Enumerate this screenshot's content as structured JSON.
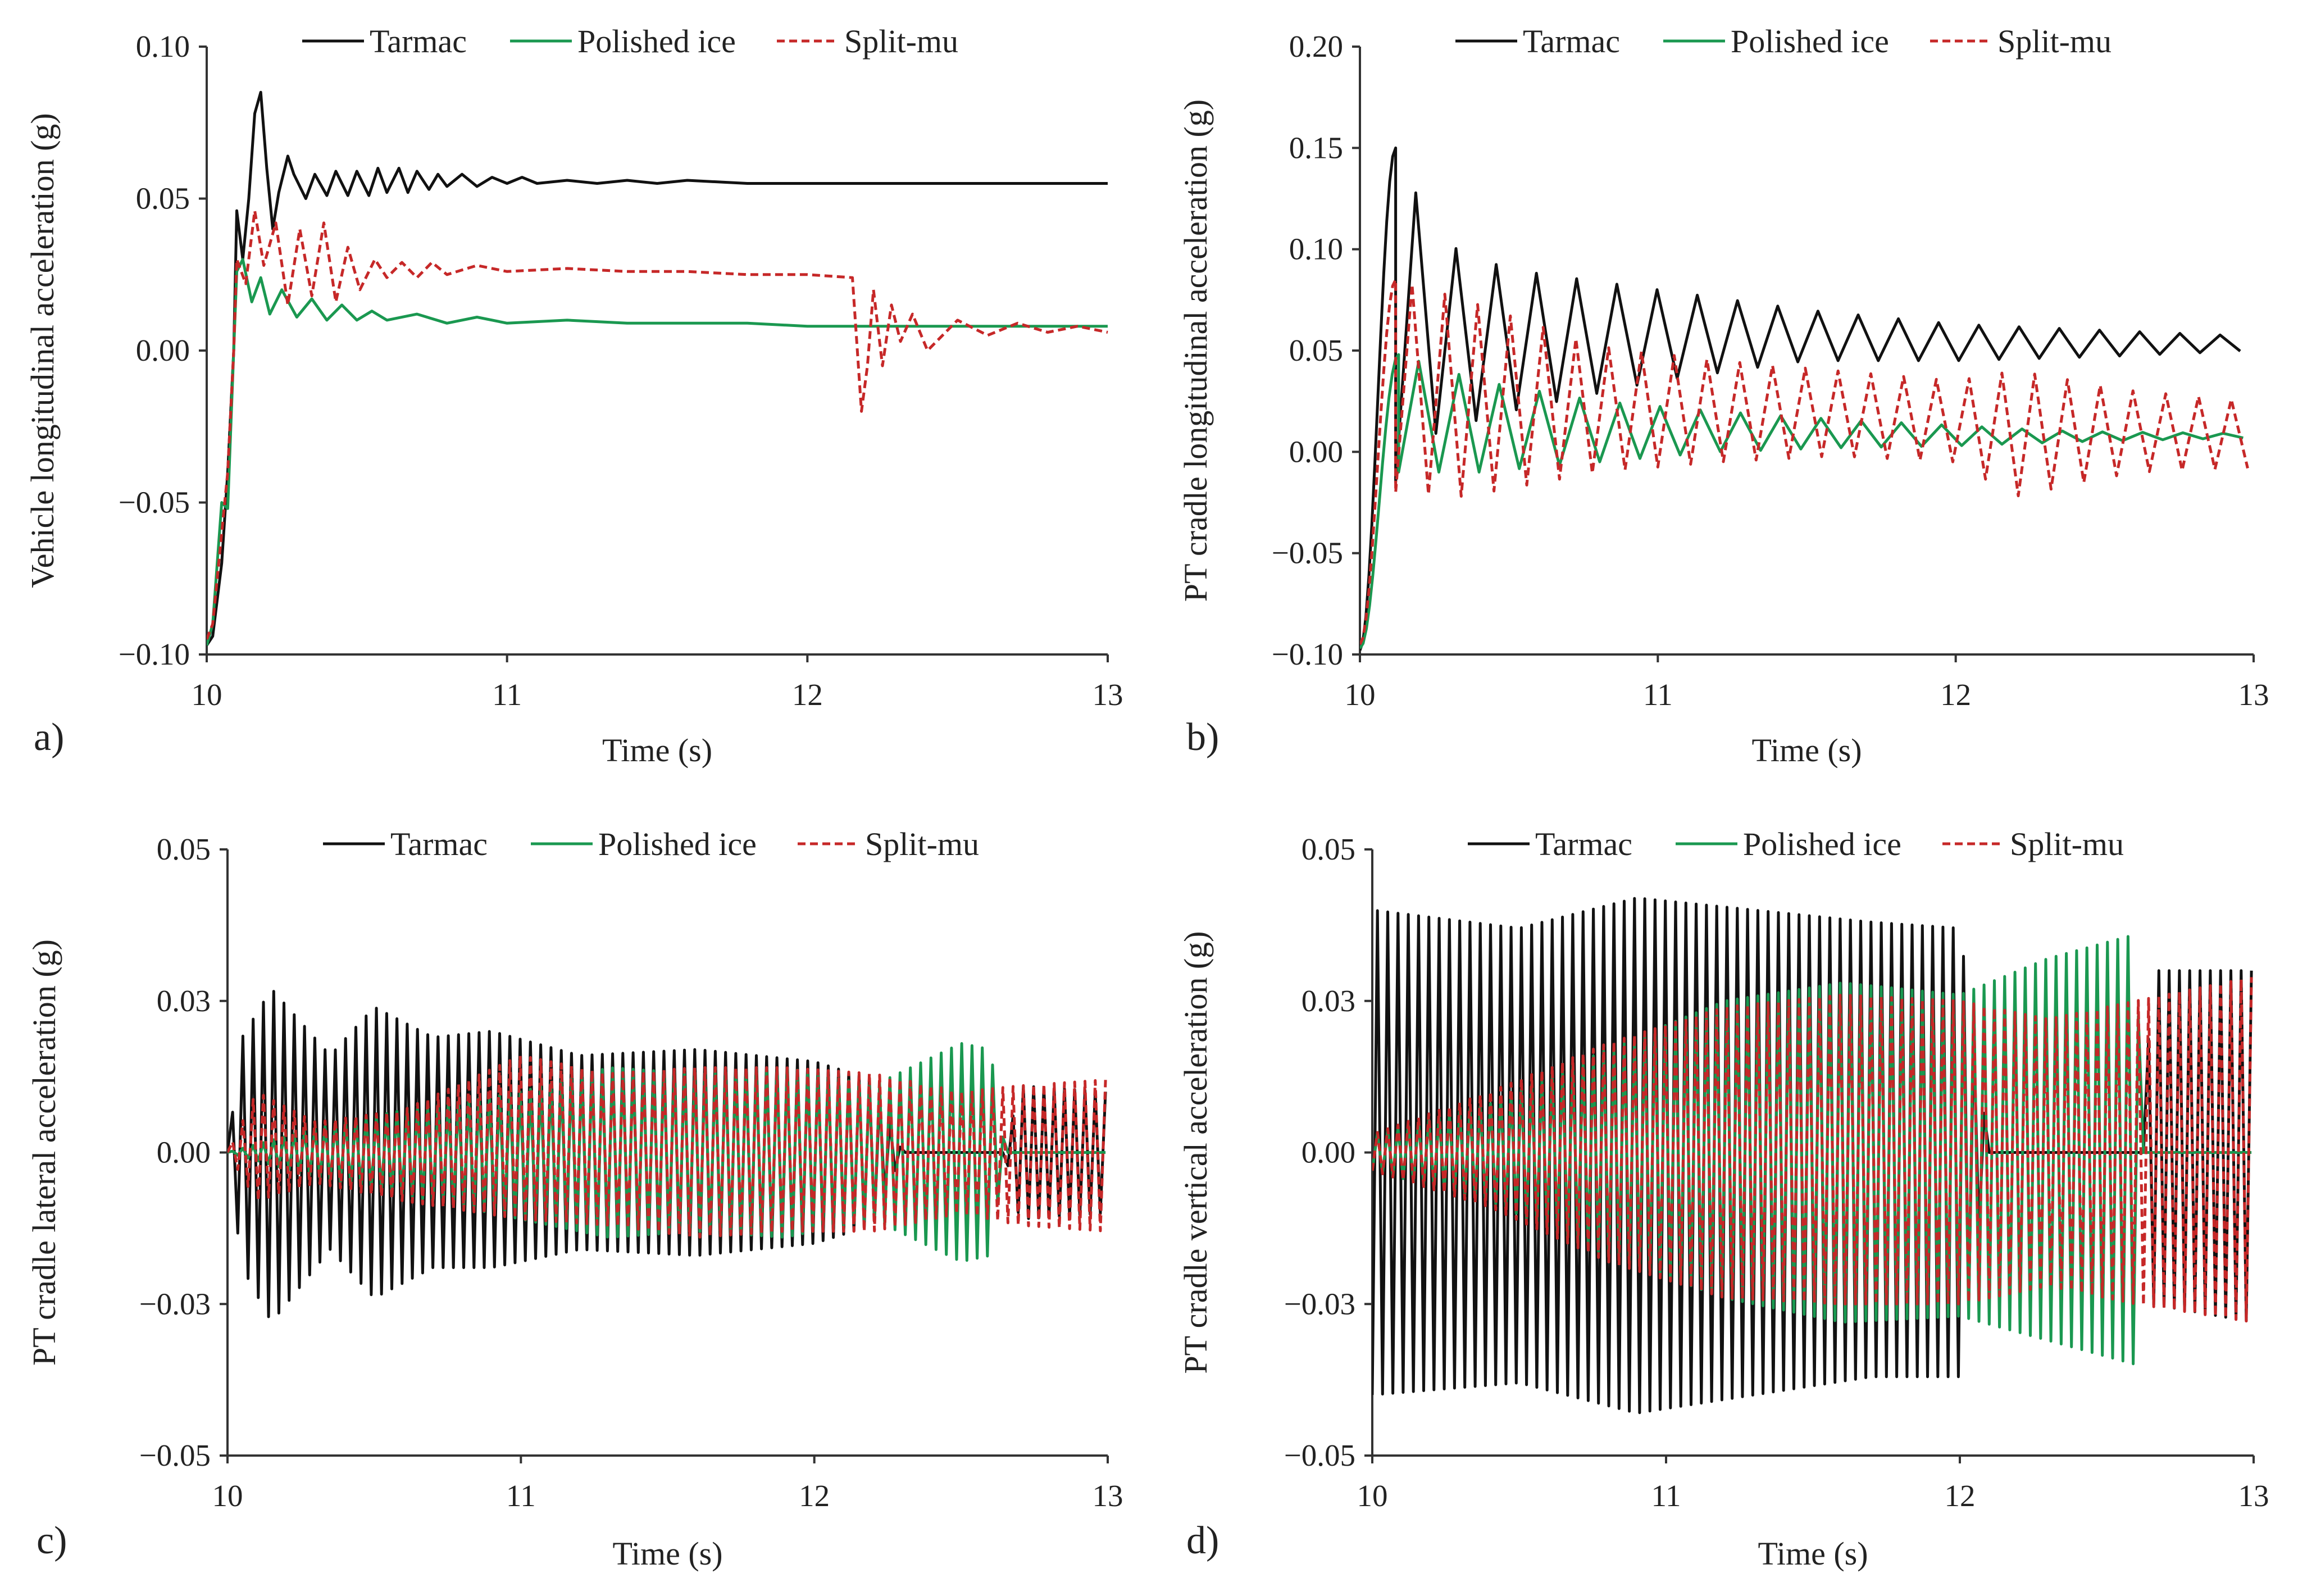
{
  "figure": {
    "legend": [
      {
        "name": "Tarmac",
        "color": "#111111",
        "dash": "solid"
      },
      {
        "name": "Polished ice",
        "color": "#1a9850",
        "dash": "solid"
      },
      {
        "name": "Split-mu",
        "color": "#c62828",
        "dash": "dashed"
      }
    ]
  },
  "chart_data": [
    {
      "panel": "a)",
      "type": "line",
      "title": "",
      "xlabel": "Time (s)",
      "ylabel": "Vehicle longitudinal acceleration (g)",
      "xlim": [
        10,
        13
      ],
      "ylim": [
        -0.1,
        0.1
      ],
      "xticks": [
        10,
        11,
        12,
        13
      ],
      "xtick_labels": [
        "10",
        "11",
        "12",
        "13"
      ],
      "yticks": [
        -0.1,
        -0.05,
        0,
        0.05,
        0.1
      ],
      "ytick_labels": [
        "−0.10",
        "−0.05",
        "0.00",
        "0.05",
        "0.10"
      ],
      "legend": [
        "Tarmac",
        "Polished ice",
        "Split-mu"
      ],
      "series": [
        {
          "name": "Tarmac",
          "x": [
            10.0,
            10.02,
            10.05,
            10.07,
            10.09,
            10.1,
            10.12,
            10.14,
            10.16,
            10.18,
            10.2,
            10.22,
            10.24,
            10.27,
            10.29,
            10.33,
            10.36,
            10.4,
            10.43,
            10.47,
            10.5,
            10.54,
            10.57,
            10.6,
            10.64,
            10.67,
            10.7,
            10.74,
            10.77,
            10.8,
            10.85,
            10.9,
            10.95,
            11.0,
            11.05,
            11.1,
            11.2,
            11.3,
            11.4,
            11.5,
            11.6,
            11.8,
            12.0,
            12.2,
            12.4,
            12.6,
            12.8,
            13.0
          ],
          "values": [
            -0.097,
            -0.094,
            -0.07,
            -0.04,
            0.0,
            0.046,
            0.03,
            0.05,
            0.078,
            0.085,
            0.06,
            0.04,
            0.052,
            0.064,
            0.058,
            0.05,
            0.058,
            0.051,
            0.059,
            0.051,
            0.059,
            0.051,
            0.06,
            0.052,
            0.06,
            0.052,
            0.059,
            0.053,
            0.058,
            0.054,
            0.058,
            0.054,
            0.057,
            0.055,
            0.057,
            0.055,
            0.056,
            0.055,
            0.056,
            0.055,
            0.056,
            0.055,
            0.055,
            0.055,
            0.055,
            0.055,
            0.055,
            0.055
          ]
        },
        {
          "name": "Polished ice",
          "x": [
            10.0,
            10.02,
            10.05,
            10.07,
            10.09,
            10.1,
            10.12,
            10.15,
            10.18,
            10.21,
            10.25,
            10.3,
            10.35,
            10.4,
            10.45,
            10.5,
            10.55,
            10.6,
            10.7,
            10.8,
            10.9,
            11.0,
            11.2,
            11.4,
            11.6,
            11.8,
            12.0,
            12.2,
            12.4,
            12.6,
            12.8,
            13.0
          ],
          "values": [
            -0.097,
            -0.09,
            -0.05,
            -0.052,
            0.0,
            0.026,
            0.03,
            0.016,
            0.024,
            0.012,
            0.02,
            0.011,
            0.017,
            0.01,
            0.015,
            0.01,
            0.013,
            0.01,
            0.012,
            0.009,
            0.011,
            0.009,
            0.01,
            0.009,
            0.009,
            0.009,
            0.008,
            0.008,
            0.008,
            0.008,
            0.008,
            0.008
          ]
        },
        {
          "name": "Split-mu",
          "x": [
            10.0,
            10.02,
            10.05,
            10.07,
            10.09,
            10.1,
            10.13,
            10.16,
            10.19,
            10.23,
            10.27,
            10.31,
            10.35,
            10.39,
            10.43,
            10.47,
            10.51,
            10.56,
            10.6,
            10.65,
            10.7,
            10.75,
            10.8,
            10.9,
            11.0,
            11.2,
            11.4,
            11.6,
            11.8,
            12.0,
            12.15,
            12.18,
            12.2,
            12.22,
            12.25,
            12.28,
            12.31,
            12.35,
            12.4,
            12.5,
            12.6,
            12.7,
            12.8,
            12.9,
            13.0
          ],
          "values": [
            -0.095,
            -0.09,
            -0.06,
            -0.04,
            0.0,
            0.03,
            0.022,
            0.046,
            0.028,
            0.042,
            0.015,
            0.04,
            0.018,
            0.042,
            0.016,
            0.034,
            0.02,
            0.03,
            0.024,
            0.029,
            0.024,
            0.029,
            0.025,
            0.028,
            0.026,
            0.027,
            0.026,
            0.026,
            0.025,
            0.025,
            0.024,
            -0.02,
            -0.005,
            0.02,
            -0.005,
            0.015,
            0.003,
            0.012,
            0.0,
            0.01,
            0.005,
            0.009,
            0.006,
            0.008,
            0.006
          ]
        }
      ]
    },
    {
      "panel": "b)",
      "type": "line",
      "title": "",
      "xlabel": "Time (s)",
      "ylabel": "PT cradle longitudinal acceleration (g)",
      "xlim": [
        10,
        13
      ],
      "ylim": [
        -0.1,
        0.2
      ],
      "xticks": [
        10,
        11,
        12,
        13
      ],
      "xtick_labels": [
        "10",
        "11",
        "12",
        "13"
      ],
      "yticks": [
        -0.1,
        -0.05,
        0,
        0.05,
        0.1,
        0.15,
        0.2
      ],
      "ytick_labels": [
        "−0.10",
        "−0.05",
        "0.00",
        "0.05",
        "0.10",
        "0.15",
        "0.20"
      ],
      "legend": [
        "Tarmac",
        "Polished ice",
        "Split-mu"
      ],
      "series": [
        {
          "name": "Tarmac",
          "oscillating": true,
          "start": [
            10.0,
            -0.098
          ],
          "rise_end": 10.1,
          "period": 0.135,
          "envelope": [
            [
              10.12,
              0.15,
              -0.015
            ],
            [
              10.26,
              0.104,
              0.01
            ],
            [
              10.5,
              0.09,
              0.02
            ],
            [
              11.0,
              0.08,
              0.035
            ],
            [
              11.5,
              0.07,
              0.045
            ],
            [
              12.0,
              0.063,
              0.045
            ],
            [
              12.5,
              0.06,
              0.047
            ],
            [
              13.0,
              0.057,
              0.05
            ]
          ]
        },
        {
          "name": "Polished ice",
          "oscillating": true,
          "start": [
            10.0,
            -0.097
          ],
          "rise_end": 10.1,
          "period": 0.135,
          "envelope": [
            [
              10.13,
              0.048,
              -0.01
            ],
            [
              10.4,
              0.035,
              -0.01
            ],
            [
              10.8,
              0.025,
              -0.005
            ],
            [
              11.2,
              0.02,
              0.0
            ],
            [
              11.6,
              0.016,
              0.002
            ],
            [
              12.0,
              0.013,
              0.003
            ],
            [
              12.4,
              0.01,
              0.005
            ],
            [
              13.0,
              0.009,
              0.007
            ]
          ]
        },
        {
          "name": "Split-mu",
          "oscillating": true,
          "start": [
            10.0,
            -0.095
          ],
          "rise_end": 10.09,
          "period": 0.11,
          "envelope": [
            [
              10.12,
              0.085,
              -0.02
            ],
            [
              10.35,
              0.075,
              -0.022
            ],
            [
              10.8,
              0.052,
              -0.01
            ],
            [
              11.2,
              0.045,
              -0.005
            ],
            [
              11.6,
              0.04,
              -0.002
            ],
            [
              12.0,
              0.035,
              -0.005
            ],
            [
              12.2,
              0.04,
              -0.022
            ],
            [
              12.6,
              0.03,
              -0.01
            ],
            [
              13.0,
              0.025,
              -0.008
            ]
          ]
        }
      ]
    },
    {
      "panel": "c)",
      "type": "line",
      "title": "",
      "xlabel": "Time (s)",
      "ylabel": "PT cradle lateral acceleration (g)",
      "xlim": [
        10,
        13
      ],
      "ylim": [
        -0.05,
        0.05
      ],
      "xticks": [
        10,
        11,
        12,
        13
      ],
      "xtick_labels": [
        "10",
        "11",
        "12",
        "13"
      ],
      "yticks": [
        -0.05,
        -0.025,
        0,
        0.025,
        0.05
      ],
      "ytick_labels": [
        "−0.05",
        "−0.03",
        "0.00",
        "0.03",
        "0.05"
      ],
      "legend": [
        "Tarmac",
        "Polished ice",
        "Split-mu"
      ],
      "series": [
        {
          "name": "Tarmac",
          "oscillating": true,
          "period": 0.035,
          "envelope": [
            [
              10.0,
              0.0,
              0.0
            ],
            [
              10.05,
              0.019,
              -0.019
            ],
            [
              10.15,
              0.027,
              -0.028
            ],
            [
              10.35,
              0.016,
              -0.016
            ],
            [
              10.5,
              0.024,
              -0.024
            ],
            [
              10.7,
              0.019,
              -0.019
            ],
            [
              10.9,
              0.02,
              -0.019
            ],
            [
              11.2,
              0.016,
              -0.016
            ],
            [
              11.6,
              0.017,
              -0.017
            ],
            [
              12.0,
              0.015,
              -0.015
            ],
            [
              12.2,
              0.012,
              -0.012
            ],
            [
              12.3,
              0.0,
              0.0
            ],
            [
              12.65,
              0.0,
              0.0
            ],
            [
              12.7,
              0.011,
              -0.011
            ],
            [
              13.0,
              0.01,
              -0.01
            ]
          ]
        },
        {
          "name": "Polished ice",
          "oscillating": true,
          "period": 0.035,
          "envelope": [
            [
              10.0,
              0.0,
              0.0
            ],
            [
              10.3,
              0.004,
              -0.004
            ],
            [
              10.6,
              0.007,
              -0.007
            ],
            [
              11.0,
              0.01,
              -0.011
            ],
            [
              11.3,
              0.014,
              -0.014
            ],
            [
              11.6,
              0.013,
              -0.013
            ],
            [
              11.9,
              0.014,
              -0.014
            ],
            [
              12.2,
              0.011,
              -0.011
            ],
            [
              12.5,
              0.018,
              -0.018
            ],
            [
              12.6,
              0.017,
              -0.017
            ],
            [
              12.65,
              0.0,
              0.0
            ],
            [
              13.0,
              0.0,
              0.0
            ]
          ]
        },
        {
          "name": "Split-mu",
          "oscillating": true,
          "period": 0.035,
          "envelope": [
            [
              10.0,
              0.0,
              0.0
            ],
            [
              10.1,
              0.01,
              -0.008
            ],
            [
              10.3,
              0.005,
              -0.005
            ],
            [
              10.6,
              0.007,
              -0.008
            ],
            [
              11.0,
              0.016,
              -0.011
            ],
            [
              11.3,
              0.013,
              -0.012
            ],
            [
              11.6,
              0.014,
              -0.014
            ],
            [
              11.9,
              0.014,
              -0.013
            ],
            [
              12.2,
              0.013,
              -0.013
            ],
            [
              12.5,
              0.01,
              -0.01
            ],
            [
              12.7,
              0.011,
              -0.012
            ],
            [
              13.0,
              0.012,
              -0.013
            ]
          ]
        }
      ]
    },
    {
      "panel": "d)",
      "type": "line",
      "title": "",
      "xlabel": "Time (s)",
      "ylabel": "PT cradle vertical acceleration (g)",
      "xlim": [
        10,
        13
      ],
      "ylim": [
        -0.05,
        0.05
      ],
      "xticks": [
        10,
        11,
        12,
        13
      ],
      "xtick_labels": [
        "10",
        "11",
        "12",
        "13"
      ],
      "yticks": [
        -0.05,
        -0.025,
        0,
        0.025,
        0.05
      ],
      "ytick_labels": [
        "−0.05",
        "−0.03",
        "0.00",
        "0.03",
        "0.05"
      ],
      "legend": [
        "Tarmac",
        "Polished ice",
        "Split-mu"
      ],
      "series": [
        {
          "name": "Tarmac",
          "oscillating": true,
          "period": 0.035,
          "envelope": [
            [
              10.0,
              0.04,
              -0.04
            ],
            [
              10.5,
              0.037,
              -0.038
            ],
            [
              10.9,
              0.042,
              -0.043
            ],
            [
              11.3,
              0.04,
              -0.04
            ],
            [
              11.7,
              0.038,
              -0.037
            ],
            [
              12.0,
              0.037,
              -0.037
            ],
            [
              12.1,
              0.0,
              0.0
            ],
            [
              12.63,
              0.0,
              0.0
            ],
            [
              12.65,
              0.03,
              -0.025
            ],
            [
              13.0,
              0.03,
              -0.028
            ]
          ]
        },
        {
          "name": "Polished ice",
          "oscillating": true,
          "period": 0.035,
          "envelope": [
            [
              10.0,
              0.003,
              -0.003
            ],
            [
              10.4,
              0.008,
              -0.008
            ],
            [
              10.8,
              0.017,
              -0.017
            ],
            [
              11.2,
              0.025,
              -0.024
            ],
            [
              11.6,
              0.028,
              -0.028
            ],
            [
              12.0,
              0.026,
              -0.027
            ],
            [
              12.3,
              0.032,
              -0.031
            ],
            [
              12.6,
              0.036,
              -0.035
            ],
            [
              12.62,
              0.0,
              0.0
            ],
            [
              13.0,
              0.0,
              0.0
            ]
          ]
        },
        {
          "name": "Split-mu",
          "oscillating": true,
          "period": 0.035,
          "envelope": [
            [
              10.0,
              0.003,
              -0.003
            ],
            [
              10.4,
              0.01,
              -0.009
            ],
            [
              10.8,
              0.018,
              -0.018
            ],
            [
              11.2,
              0.024,
              -0.024
            ],
            [
              11.6,
              0.026,
              -0.025
            ],
            [
              12.0,
              0.025,
              -0.025
            ],
            [
              12.3,
              0.022,
              -0.022
            ],
            [
              12.6,
              0.025,
              -0.025
            ],
            [
              13.0,
              0.029,
              -0.028
            ]
          ]
        }
      ]
    }
  ]
}
